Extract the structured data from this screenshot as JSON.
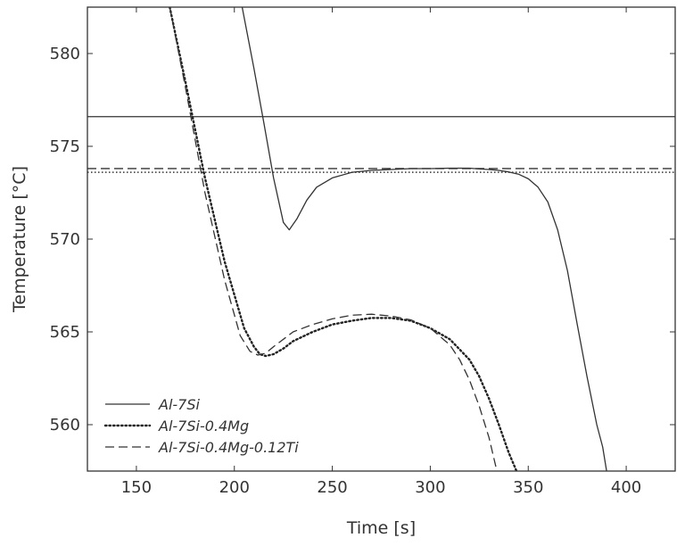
{
  "chart_data": {
    "type": "line",
    "title": "",
    "xlabel": "Time [s]",
    "ylabel": "Temperature [°C]",
    "xlim": [
      125,
      425
    ],
    "ylim": [
      557.5,
      582.5
    ],
    "xticks": [
      150,
      200,
      250,
      300,
      350,
      400
    ],
    "yticks": [
      560,
      565,
      570,
      575,
      580
    ],
    "grid": false,
    "legend_position": "bottom-left",
    "series": [
      {
        "name": "Al-7Si",
        "style": "solid",
        "color": "#333333",
        "x": [
          204,
          210,
          215,
          220,
          225,
          228,
          232,
          237,
          242,
          250,
          260,
          270,
          280,
          290,
          300,
          310,
          320,
          325,
          330,
          335,
          340,
          345,
          350,
          355,
          360,
          365,
          370,
          375,
          380,
          385,
          388,
          390
        ],
        "y": [
          582.5,
          579.2,
          576.3,
          573.3,
          570.9,
          570.5,
          571.1,
          572.1,
          572.8,
          573.3,
          573.6,
          573.7,
          573.75,
          573.8,
          573.8,
          573.82,
          573.82,
          573.78,
          573.75,
          573.7,
          573.62,
          573.5,
          573.25,
          572.8,
          572.0,
          570.5,
          568.3,
          565.4,
          562.6,
          560.0,
          558.8,
          557.5
        ]
      },
      {
        "name": "Al-7Si-0.4Mg",
        "style": "dotted",
        "color": "#222222",
        "x": [
          167,
          175,
          185,
          195,
          205,
          210,
          213,
          216,
          220,
          225,
          230,
          240,
          250,
          260,
          270,
          280,
          290,
          300,
          310,
          320,
          325,
          330,
          335,
          340,
          344
        ],
        "y": [
          582.5,
          578.5,
          573.3,
          568.8,
          565.2,
          564.2,
          563.8,
          563.7,
          563.8,
          564.1,
          564.5,
          565.0,
          565.4,
          565.6,
          565.75,
          565.75,
          565.6,
          565.2,
          564.6,
          563.5,
          562.6,
          561.4,
          560.0,
          558.5,
          557.5
        ]
      },
      {
        "name": "Al-7Si-0.4Mg-0.12Ti",
        "style": "dashed",
        "color": "#333333",
        "x": [
          167,
          175,
          185,
          195,
          203,
          208,
          212,
          216,
          220,
          225,
          230,
          240,
          250,
          260,
          270,
          280,
          290,
          300,
          310,
          315,
          320,
          325,
          330,
          334
        ],
        "y": [
          582.5,
          578.2,
          572.5,
          567.8,
          564.8,
          563.95,
          563.75,
          563.85,
          564.2,
          564.6,
          565.0,
          565.4,
          565.7,
          565.9,
          565.95,
          565.85,
          565.65,
          565.2,
          564.3,
          563.5,
          562.4,
          561.0,
          559.3,
          557.5
        ]
      }
    ],
    "reference_lines": [
      {
        "y": 576.6,
        "style": "solid"
      },
      {
        "y": 573.8,
        "style": "dashed"
      },
      {
        "y": 573.6,
        "style": "dotted"
      }
    ]
  }
}
